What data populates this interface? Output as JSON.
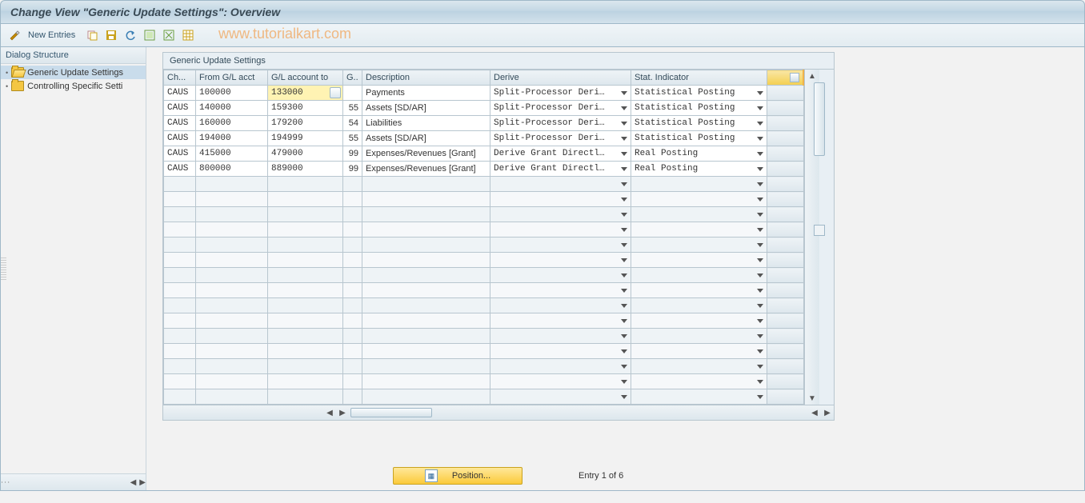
{
  "title": "Change View \"Generic Update Settings\": Overview",
  "watermark": "www.tutorialkart.com",
  "toolbar": {
    "new_entries_label": "New Entries"
  },
  "sidebar": {
    "header": "Dialog Structure",
    "items": [
      {
        "label": "Generic Update Settings",
        "selected": true,
        "open": true
      },
      {
        "label": "Controlling Specific Setti",
        "selected": false,
        "open": false
      }
    ]
  },
  "panel": {
    "title": "Generic Update Settings",
    "columns": {
      "ch": {
        "label": "Ch...",
        "width": 40
      },
      "from": {
        "label": "From G/L acct",
        "width": 90
      },
      "to": {
        "label": "G/L account to",
        "width": 94
      },
      "g": {
        "label": "G..",
        "width": 24
      },
      "desc": {
        "label": "Description",
        "width": 160
      },
      "derive": {
        "label": "Derive",
        "width": 176
      },
      "stat": {
        "label": "Stat. Indicator",
        "width": 170
      }
    },
    "rows": [
      {
        "ch": "CAUS",
        "from": "100000",
        "to": "133000",
        "g": "",
        "desc": "Payments",
        "derive": "Split-Processor Deri…",
        "stat": "Statistical Posting",
        "active": true,
        "f4": true
      },
      {
        "ch": "CAUS",
        "from": "140000",
        "to": "159300",
        "g": "55",
        "desc": "Assets [SD/AR]",
        "derive": "Split-Processor Deri…",
        "stat": "Statistical Posting"
      },
      {
        "ch": "CAUS",
        "from": "160000",
        "to": "179200",
        "g": "54",
        "desc": "Liabilities",
        "derive": "Split-Processor Deri…",
        "stat": "Statistical Posting"
      },
      {
        "ch": "CAUS",
        "from": "194000",
        "to": "194999",
        "g": "55",
        "desc": "Assets [SD/AR]",
        "derive": "Split-Processor Deri…",
        "stat": "Statistical Posting"
      },
      {
        "ch": "CAUS",
        "from": "415000",
        "to": "479000",
        "g": "99",
        "desc": "Expenses/Revenues [Grant]",
        "derive": "Derive Grant Directl…",
        "stat": "Real Posting"
      },
      {
        "ch": "CAUS",
        "from": "800000",
        "to": "889000",
        "g": "99",
        "desc": "Expenses/Revenues [Grant]",
        "derive": "Derive Grant Directl…",
        "stat": "Real Posting"
      }
    ],
    "empty_rows": 15,
    "h_thumb_left_l": 24,
    "h_thumb_width_l": 100,
    "h_thumb_left_r": 0,
    "h_thumb_width_r": 0
  },
  "footer": {
    "position_label": "Position...",
    "entry_status": "Entry 1 of 6"
  },
  "colors": {
    "title_grad_top": "#dbe7ee",
    "title_grad_bottom": "#d3e2eb",
    "border": "#9fb8c8",
    "accent_yellow": "#fbca3a",
    "watermark": "#f29a45"
  }
}
